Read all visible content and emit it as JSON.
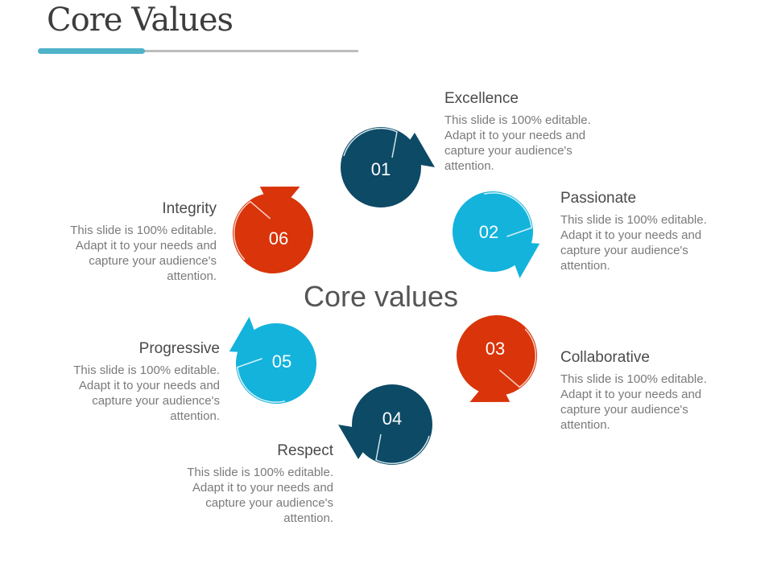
{
  "title": "Core Values",
  "center_label": "Core values",
  "colors": {
    "dark": "#0d4a66",
    "light": "#13b3dc",
    "red": "#d9340a",
    "accent": "#4fb3c9"
  },
  "items": [
    {
      "num": "01",
      "title": "Excellence",
      "text": "This slide is 100% editable. Adapt it to your needs and capture your audience's attention.",
      "color": "#0d4a66"
    },
    {
      "num": "02",
      "title": "Passionate",
      "text": "This slide is 100% editable. Adapt it to your needs and capture your audience's attention.",
      "color": "#13b3dc"
    },
    {
      "num": "03",
      "title": "Collaborative",
      "text": "This slide is 100% editable. Adapt it to your needs and capture your audience's attention.",
      "color": "#d9340a"
    },
    {
      "num": "04",
      "title": "Respect",
      "text": "This slide is 100% editable. Adapt it to your needs and capture your audience's attention.",
      "color": "#0d4a66"
    },
    {
      "num": "05",
      "title": "Progressive",
      "text": "This slide is 100% editable. Adapt it to your needs and capture your audience's attention.",
      "color": "#13b3dc"
    },
    {
      "num": "06",
      "title": "Integrity",
      "text": "This slide is 100% editable. Adapt it to your needs and capture your audience's attention.",
      "color": "#d9340a"
    }
  ]
}
